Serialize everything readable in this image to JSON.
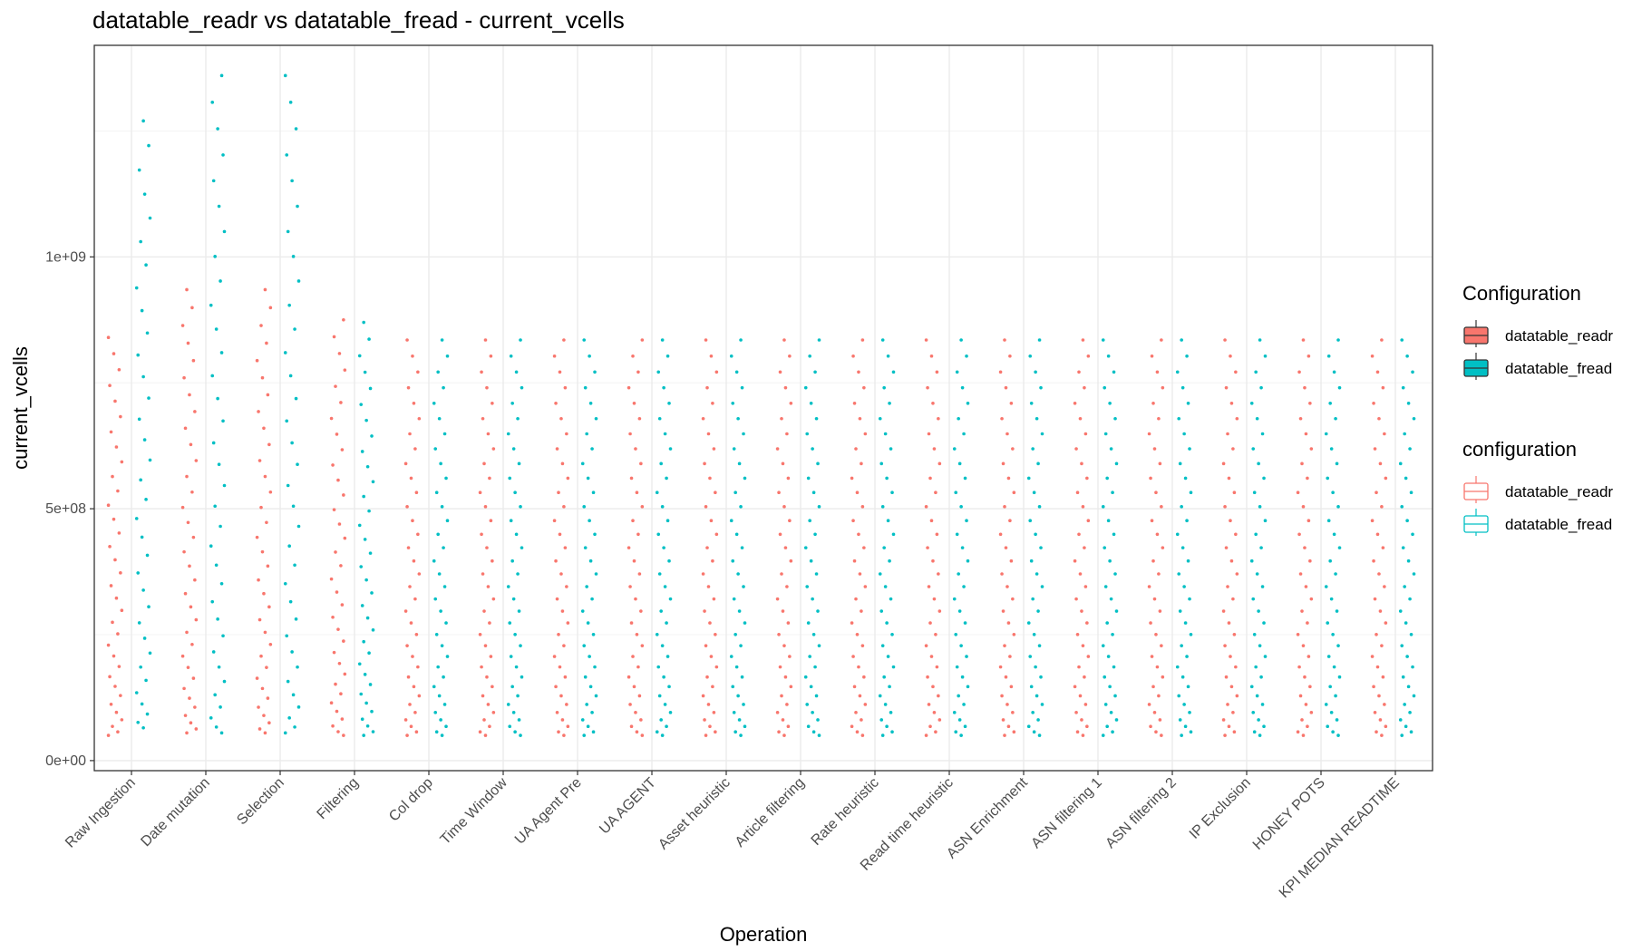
{
  "chart_data": {
    "type": "scatter",
    "title": "datatable_readr vs datatable_fread - current_vcells",
    "xlabel": "Operation",
    "ylabel": "current_vcells",
    "ylim": [
      -20000000,
      1420000000
    ],
    "yticks": [
      0,
      500000000,
      1000000000
    ],
    "ytick_labels": [
      "0e+00",
      "5e+08",
      "1e+09"
    ],
    "grid": true,
    "legend_position": "right",
    "categories": [
      "Raw Ingestion",
      "Date mutation",
      "Selection",
      "Filtering",
      "Col drop",
      "Time Window",
      "UA Agent Pre",
      "UA AGENT",
      "Asset heuristic",
      "Article filtering",
      "Rate heuristic",
      "Read time heuristic",
      "ASN Enrichment",
      "ASN filtering 1",
      "ASN filtering 2",
      "IP Exclusion",
      "HONEY POTS",
      "KPI MEDIAN READTIME"
    ],
    "series": [
      {
        "name": "datatable_readr",
        "color": "#F8766D",
        "min": [
          50000000,
          55000000,
          55000000,
          50000000,
          50000000,
          50000000,
          50000000,
          50000000,
          50000000,
          50000000,
          50000000,
          50000000,
          50000000,
          50000000,
          50000000,
          50000000,
          50000000,
          50000000
        ],
        "max": [
          840000000,
          935000000,
          935000000,
          875000000,
          835000000,
          835000000,
          835000000,
          835000000,
          835000000,
          835000000,
          835000000,
          835000000,
          835000000,
          835000000,
          835000000,
          835000000,
          835000000,
          835000000
        ]
      },
      {
        "name": "datatable_fread",
        "color": "#00BFC4",
        "min": [
          65000000,
          55000000,
          55000000,
          50000000,
          50000000,
          50000000,
          50000000,
          50000000,
          50000000,
          50000000,
          50000000,
          50000000,
          50000000,
          50000000,
          50000000,
          50000000,
          50000000,
          50000000
        ],
        "max": [
          1270000000,
          1360000000,
          1360000000,
          870000000,
          835000000,
          835000000,
          835000000,
          835000000,
          835000000,
          835000000,
          835000000,
          835000000,
          835000000,
          835000000,
          835000000,
          835000000,
          835000000,
          835000000
        ]
      }
    ]
  },
  "legend": [
    {
      "title": "Configuration",
      "style": "filled",
      "items": [
        {
          "label": "datatable_readr",
          "color": "#F8766D"
        },
        {
          "label": "datatable_fread",
          "color": "#00BFC4"
        }
      ]
    },
    {
      "title": "configuration",
      "style": "outline",
      "items": [
        {
          "label": "datatable_readr",
          "color": "#F8766D"
        },
        {
          "label": "datatable_fread",
          "color": "#00BFC4"
        }
      ]
    }
  ]
}
